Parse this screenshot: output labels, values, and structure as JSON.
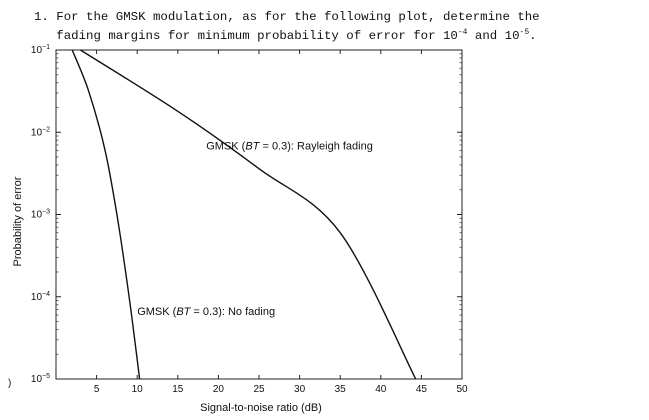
{
  "question": {
    "line1": "1. For the GMSK modulation, as for the following plot, determine the",
    "line2_pre": "   fading margins for minimum probability of error for ",
    "exp1": "-4",
    "mid": " and ",
    "exp2": "-5",
    "end": ".",
    "base": "10"
  },
  "stray_mark": ")",
  "chart_data": {
    "type": "line",
    "xlabel": "Signal-to-noise ratio (dB)",
    "ylabel": "Probability of error",
    "xlim": [
      0,
      50
    ],
    "ylim": [
      1e-05,
      0.1
    ],
    "yscale": "log",
    "grid": false,
    "x_ticks": [
      5,
      10,
      15,
      20,
      25,
      30,
      35,
      40,
      45,
      50
    ],
    "y_ticks": [
      {
        "value": 0.1,
        "base": "10",
        "exp": "−1"
      },
      {
        "value": 0.01,
        "base": "10",
        "exp": "−2"
      },
      {
        "value": 0.001,
        "base": "10",
        "exp": "−3"
      },
      {
        "value": 0.0001,
        "base": "10",
        "exp": "−4"
      },
      {
        "value": 1e-05,
        "base": "10",
        "exp": "−5"
      }
    ],
    "series": [
      {
        "name": "GMSK (BT = 0.3): No fading",
        "label_parts": [
          "GMSK (",
          "BT",
          " = 0.3): No fading"
        ],
        "label_at": {
          "x": 10,
          "y": 6e-05
        },
        "x": [
          2.0,
          4.0,
          6.0,
          7.5,
          9.0,
          10.3
        ],
        "y": [
          0.1,
          0.032,
          0.0063,
          0.001,
          0.0001,
          1e-05
        ]
      },
      {
        "name": "GMSK (BT = 0.3): Rayleigh fading",
        "label_parts": [
          "GMSK (",
          "BT",
          " = 0.3): Rayleigh fading"
        ],
        "label_at": {
          "x": 18.5,
          "y": 0.0062
        },
        "x": [
          3.0,
          15.0,
          25.0,
          35.0,
          44.3
        ],
        "y": [
          0.1,
          0.018,
          0.0036,
          0.0006,
          1e-05
        ]
      }
    ]
  }
}
